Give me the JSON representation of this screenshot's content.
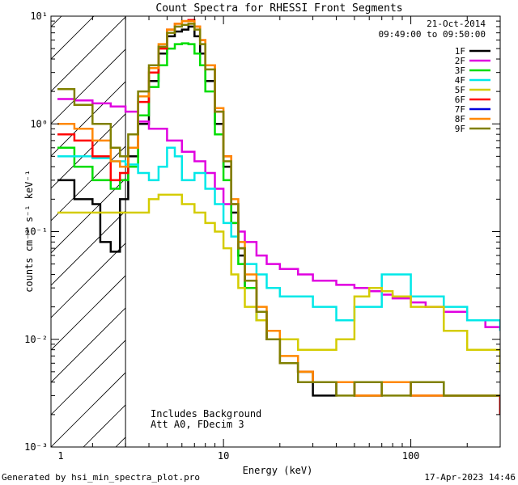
{
  "chart_data": {
    "type": "line",
    "title": "Count Spectra for RHESSI Front Segments",
    "xlabel": "Energy (keV)",
    "ylabel": "counts cm⁻² s⁻¹ keV⁻¹",
    "xscale": "log",
    "yscale": "log",
    "xlim": [
      1.2,
      300
    ],
    "ylim": [
      0.001,
      10
    ],
    "x_ticks": [
      {
        "value": 1,
        "label": "1"
      },
      {
        "value": 10,
        "label": "10"
      },
      {
        "value": 100,
        "label": "100"
      }
    ],
    "y_ticks": [
      {
        "value": 0.001,
        "label": "10⁻³"
      },
      {
        "value": 0.01,
        "label": "10⁻²"
      },
      {
        "value": 0.1,
        "label": "10⁻¹"
      },
      {
        "value": 1,
        "label": "10⁰"
      },
      {
        "value": 10,
        "label": "10¹"
      }
    ],
    "hatched_region": {
      "x_max": 3
    },
    "date": "21-Oct-2014",
    "time_range": "09:49:00 to 09:50:00",
    "annotations": [
      "Includes Background",
      "Att A0, FDecim 3"
    ],
    "series": [
      {
        "name": "1F",
        "color": "#000000",
        "x": [
          1.3,
          1.6,
          2,
          2.2,
          2.5,
          2.8,
          3.1,
          3.5,
          4,
          4.5,
          5,
          5.5,
          6,
          6.5,
          7,
          7.5,
          8,
          9,
          10,
          11,
          12,
          13,
          15,
          17,
          20,
          25,
          30,
          40,
          50,
          70,
          100,
          150,
          200,
          300
        ],
        "y": [
          0.3,
          0.2,
          0.18,
          0.08,
          0.065,
          0.2,
          0.5,
          1.0,
          2.5,
          4.5,
          6.5,
          7.2,
          7.5,
          8.0,
          6.5,
          4.5,
          2.5,
          1.0,
          0.4,
          0.15,
          0.06,
          0.03,
          0.015,
          0.01,
          0.006,
          0.005,
          0.003,
          0.004,
          0.003,
          0.004,
          0.003,
          0.003,
          0.003,
          0.002
        ]
      },
      {
        "name": "2F",
        "color": "#e000e0",
        "x": [
          1.3,
          1.6,
          2,
          2.5,
          3,
          3.5,
          4,
          5,
          6,
          7,
          8,
          9,
          10,
          11,
          12,
          13,
          15,
          17,
          20,
          25,
          30,
          40,
          50,
          60,
          70,
          80,
          100,
          120,
          150,
          200,
          250,
          300
        ],
        "y": [
          1.7,
          1.65,
          1.55,
          1.45,
          1.3,
          1.05,
          0.9,
          0.7,
          0.55,
          0.45,
          0.35,
          0.25,
          0.18,
          0.12,
          0.1,
          0.08,
          0.06,
          0.05,
          0.045,
          0.04,
          0.035,
          0.032,
          0.03,
          0.028,
          0.026,
          0.024,
          0.022,
          0.02,
          0.018,
          0.015,
          0.013,
          0.012
        ]
      },
      {
        "name": "3F",
        "color": "#00dd00",
        "x": [
          1.3,
          1.6,
          2,
          2.5,
          2.8,
          3.1,
          3.5,
          4,
          4.5,
          5,
          5.5,
          6,
          6.5,
          7,
          7.5,
          8,
          9,
          10,
          11,
          12,
          13,
          15,
          17,
          20,
          25,
          30,
          40,
          50,
          70,
          100,
          150,
          200,
          300
        ],
        "y": [
          0.6,
          0.4,
          0.3,
          0.25,
          0.3,
          0.4,
          1.2,
          2.2,
          3.5,
          5.0,
          5.5,
          5.6,
          5.5,
          4.5,
          3.5,
          2.0,
          0.8,
          0.3,
          0.12,
          0.05,
          0.03,
          0.015,
          0.01,
          0.006,
          0.005,
          0.004,
          0.004,
          0.003,
          0.004,
          0.004,
          0.003,
          0.003,
          0.003
        ]
      },
      {
        "name": "4F",
        "color": "#00e8e8",
        "x": [
          1.3,
          1.6,
          2,
          2.5,
          3,
          3.5,
          4,
          4.5,
          5,
          5.5,
          6,
          7,
          8,
          9,
          10,
          11,
          12,
          13,
          15,
          17,
          20,
          25,
          30,
          40,
          50,
          70,
          100,
          150,
          200,
          300
        ],
        "y": [
          0.5,
          0.5,
          0.48,
          0.45,
          0.42,
          0.35,
          0.3,
          0.4,
          0.6,
          0.5,
          0.3,
          0.35,
          0.25,
          0.18,
          0.12,
          0.09,
          0.07,
          0.05,
          0.04,
          0.03,
          0.025,
          0.025,
          0.02,
          0.015,
          0.02,
          0.04,
          0.025,
          0.02,
          0.015,
          0.012
        ]
      },
      {
        "name": "5F",
        "color": "#d4cc00",
        "x": [
          1.3,
          1.6,
          2,
          2.5,
          3,
          3.5,
          4,
          4.5,
          5,
          6,
          7,
          8,
          9,
          10,
          11,
          12,
          13,
          15,
          17,
          20,
          25,
          30,
          40,
          50,
          60,
          70,
          80,
          100,
          150,
          200,
          300
        ],
        "y": [
          0.15,
          0.15,
          0.15,
          0.15,
          0.15,
          0.15,
          0.2,
          0.22,
          0.22,
          0.18,
          0.15,
          0.12,
          0.1,
          0.07,
          0.04,
          0.03,
          0.02,
          0.015,
          0.012,
          0.01,
          0.008,
          0.008,
          0.01,
          0.025,
          0.03,
          0.028,
          0.025,
          0.02,
          0.012,
          0.008,
          0.005
        ]
      },
      {
        "name": "6F",
        "color": "#ff0000",
        "x": [
          1.3,
          1.6,
          2,
          2.5,
          2.8,
          3.1,
          3.5,
          4,
          4.5,
          5,
          5.5,
          6,
          6.5,
          7,
          7.5,
          8,
          9,
          10,
          11,
          12,
          13,
          15,
          17,
          20,
          25,
          30,
          40,
          50,
          70,
          100,
          150,
          200,
          300
        ],
        "y": [
          0.8,
          0.7,
          0.5,
          0.3,
          0.35,
          0.6,
          1.6,
          3.0,
          5.0,
          7.5,
          8.5,
          9.0,
          9.2,
          8.0,
          6.0,
          3.5,
          1.3,
          0.5,
          0.18,
          0.07,
          0.035,
          0.018,
          0.01,
          0.006,
          0.005,
          0.004,
          0.004,
          0.003,
          0.004,
          0.003,
          0.003,
          0.003,
          0.002
        ]
      },
      {
        "name": "7F",
        "color": "#0000dd",
        "x": [],
        "y": []
      },
      {
        "name": "8F",
        "color": "#ff8800",
        "x": [
          1.3,
          1.6,
          2,
          2.5,
          2.8,
          3.1,
          3.5,
          4,
          4.5,
          5,
          5.5,
          6,
          6.5,
          7,
          7.5,
          8,
          9,
          10,
          11,
          12,
          13,
          15,
          17,
          20,
          25,
          30,
          40,
          50,
          70,
          100,
          150,
          200,
          300
        ],
        "y": [
          1.0,
          0.9,
          0.7,
          0.45,
          0.4,
          0.6,
          1.8,
          3.3,
          5.5,
          7.5,
          8.5,
          9.0,
          9.0,
          8.0,
          6.0,
          3.5,
          1.4,
          0.5,
          0.2,
          0.08,
          0.04,
          0.02,
          0.012,
          0.007,
          0.005,
          0.004,
          0.004,
          0.003,
          0.004,
          0.003,
          0.003,
          0.003,
          0.003
        ]
      },
      {
        "name": "9F",
        "color": "#808000",
        "x": [
          1.3,
          1.6,
          2,
          2.5,
          2.8,
          3.1,
          3.5,
          4,
          4.5,
          5,
          5.5,
          6,
          6.5,
          7,
          7.5,
          8,
          9,
          10,
          11,
          12,
          13,
          15,
          17,
          20,
          25,
          30,
          40,
          50,
          70,
          100,
          150,
          200,
          300
        ],
        "y": [
          2.1,
          1.5,
          1.0,
          0.6,
          0.5,
          0.8,
          2.0,
          3.5,
          5.2,
          7.0,
          8.0,
          8.3,
          8.5,
          7.5,
          5.5,
          3.2,
          1.3,
          0.45,
          0.18,
          0.07,
          0.035,
          0.018,
          0.01,
          0.006,
          0.004,
          0.004,
          0.003,
          0.004,
          0.003,
          0.004,
          0.003,
          0.003,
          0.003
        ]
      }
    ]
  },
  "footer": {
    "generated": "Generated by hsi_min_spectra_plot.pro",
    "timestamp": "17-Apr-2023 14:46"
  }
}
